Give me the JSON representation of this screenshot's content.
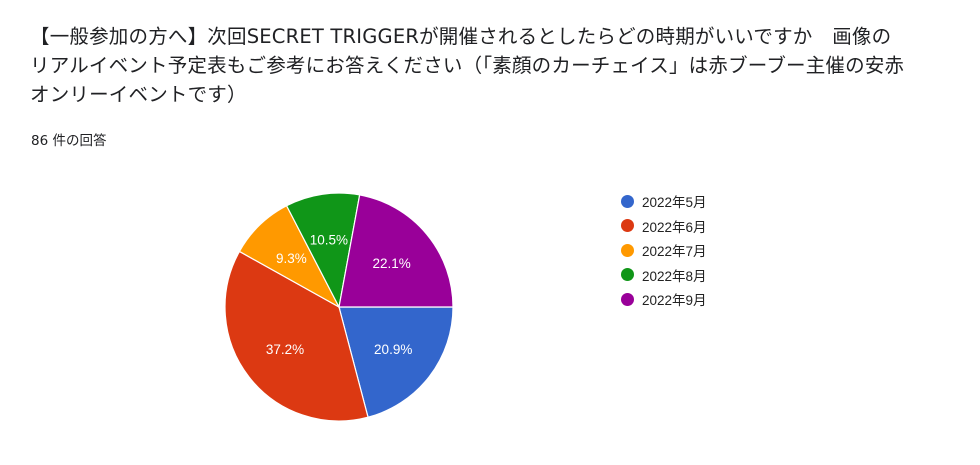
{
  "question": {
    "text": "【一般参加の方へ】次回SECRET TRIGGERが開催されるとしたらどの時期がいいですか　画像のリアルイベント予定表もご参考にお答えください（「素顔のカーチェイス」は赤ブーブー主催の安赤オンリーイベントです）",
    "response_count": "86 件の回答"
  },
  "chart_data": {
    "type": "pie",
    "title": "",
    "start_angle_deg": 0,
    "direction": "clockwise",
    "legend_position": "right",
    "slices": [
      {
        "label": "2022年5月",
        "value": 20.9,
        "display": "20.9%",
        "color": "#3366cc"
      },
      {
        "label": "2022年6月",
        "value": 37.2,
        "display": "37.2%",
        "color": "#dc3912"
      },
      {
        "label": "2022年7月",
        "value": 9.3,
        "display": "9.3%",
        "color": "#ff9900"
      },
      {
        "label": "2022年8月",
        "value": 10.5,
        "display": "10.5%",
        "color": "#109618"
      },
      {
        "label": "2022年9月",
        "value": 22.1,
        "display": "22.1%",
        "color": "#990099"
      }
    ]
  }
}
